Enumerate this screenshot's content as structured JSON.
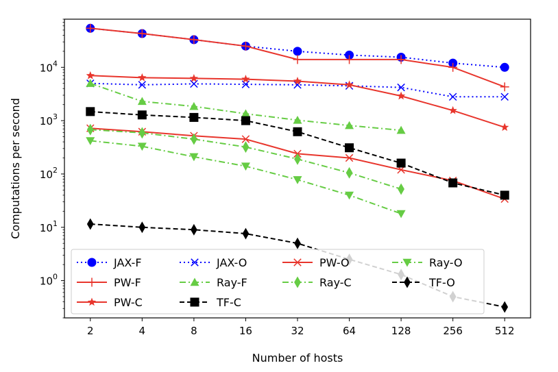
{
  "chart_data": {
    "type": "line",
    "xlabel": "Number of hosts",
    "ylabel": "Computations per second",
    "x": [
      2,
      4,
      8,
      16,
      32,
      64,
      128,
      256,
      512
    ],
    "x_scale": "log2",
    "y_scale": "log10",
    "x_ticks": [
      "2",
      "4",
      "8",
      "16",
      "32",
      "64",
      "128",
      "256",
      "512"
    ],
    "y_ticks": [
      {
        "value": 1,
        "base": "10",
        "exp": "0"
      },
      {
        "value": 10,
        "base": "10",
        "exp": "1"
      },
      {
        "value": 100,
        "base": "10",
        "exp": "2"
      },
      {
        "value": 1000,
        "base": "10",
        "exp": "3"
      },
      {
        "value": 10000,
        "base": "10",
        "exp": "4"
      }
    ],
    "ylim": [
      0.2,
      80000
    ],
    "grid": false,
    "legend_position": "lower-left",
    "series": [
      {
        "name": "JAX-F",
        "color": "#0000ff",
        "dash": "dotted",
        "marker": "circle",
        "values": [
          54000,
          43000,
          33000,
          25000,
          20000,
          17000,
          15500,
          12000,
          10000
        ]
      },
      {
        "name": "JAX-O",
        "color": "#0000ff",
        "dash": "dotted",
        "marker": "x",
        "values": [
          5000,
          4700,
          4900,
          4800,
          4700,
          4500,
          4200,
          2800,
          2800
        ]
      },
      {
        "name": "PW-O",
        "color": "#e8352c",
        "dash": "solid",
        "marker": "x",
        "values": [
          720,
          620,
          520,
          450,
          240,
          200,
          120,
          75,
          34
        ]
      },
      {
        "name": "Ray-O",
        "color": "#66cc44",
        "dash": "dashdot",
        "marker": "triangle-down",
        "values": [
          420,
          330,
          210,
          140,
          78,
          40,
          18,
          null,
          null
        ]
      },
      {
        "name": "PW-F",
        "color": "#e8352c",
        "dash": "solid",
        "marker": "plus",
        "values": [
          54000,
          43000,
          33000,
          25000,
          14000,
          14000,
          14000,
          10000,
          4300
        ]
      },
      {
        "name": "Ray-F",
        "color": "#66cc44",
        "dash": "dashdot",
        "marker": "triangle-up",
        "values": [
          5000,
          2300,
          1850,
          1350,
          1020,
          810,
          660,
          null,
          null
        ]
      },
      {
        "name": "Ray-C",
        "color": "#66cc44",
        "dash": "dashdot",
        "marker": "diamond",
        "values": [
          680,
          590,
          450,
          320,
          190,
          105,
          52,
          null,
          null
        ]
      },
      {
        "name": "TF-O",
        "color": "#000000",
        "dash": "dashed",
        "marker": "diamond",
        "values": [
          11.5,
          10,
          9,
          7.6,
          5,
          2.5,
          1.3,
          0.5,
          0.32
        ]
      },
      {
        "name": "PW-C",
        "color": "#e8352c",
        "dash": "solid",
        "marker": "star",
        "values": [
          7000,
          6400,
          6200,
          6000,
          5500,
          4700,
          2900,
          1550,
          750
        ]
      },
      {
        "name": "TF-C",
        "color": "#000000",
        "dash": "dashed",
        "marker": "square",
        "values": [
          1480,
          1280,
          1150,
          1000,
          620,
          310,
          160,
          68,
          40
        ]
      }
    ]
  }
}
